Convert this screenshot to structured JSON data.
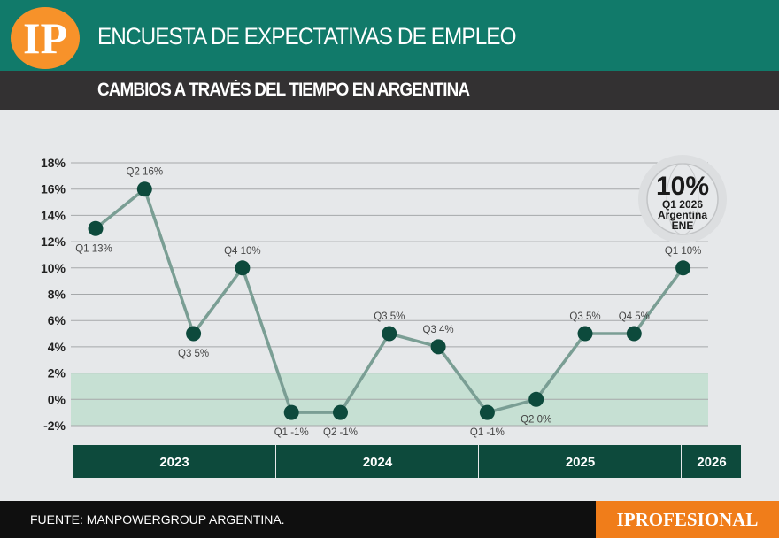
{
  "header": {
    "logo": "IP",
    "title": "ENCUESTA DE EXPECTATIVAS DE EMPLEO",
    "subtitle": "CAMBIOS A TRAVÉS DEL TIEMPO EN ARGENTINA"
  },
  "footer": {
    "source": "FUENTE: MANPOWERGROUP ARGENTINA.",
    "brand": "IPROFESIONAL"
  },
  "badge": {
    "value": "10%",
    "line1": "Q1 2026",
    "line2": "Argentina",
    "line3": "ENE"
  },
  "colors": {
    "header": "#117a6a",
    "line": "#7a9e94",
    "marker": "#0d4a3c",
    "band": "#c6e0d3",
    "years_bar": "#0d4a3c",
    "brand": "#f07d1a"
  },
  "chart_data": {
    "type": "line",
    "ylim": [
      -2,
      18
    ],
    "yticks": [
      "18%",
      "16%",
      "14%",
      "12%",
      "10%",
      "8%",
      "6%",
      "4%",
      "2%",
      "0%",
      "-2%"
    ],
    "grid": true,
    "shaded_band": [
      -2,
      2
    ],
    "values": [
      13,
      16,
      5,
      10,
      -1,
      -1,
      5,
      4,
      -1,
      0,
      5,
      5,
      10
    ],
    "labels": [
      "Q1 13%",
      "Q2 16%",
      "Q3 5%",
      "Q4 10%",
      "Q1 -1%",
      "Q2 -1%",
      "Q3 5%",
      "Q3 4%",
      "Q1 -1%",
      "Q2 0%",
      "Q3 5%",
      "Q4 5%",
      "Q1 10%"
    ],
    "years": [
      {
        "label": "2023",
        "quarters": 4
      },
      {
        "label": "2024",
        "quarters": 4
      },
      {
        "label": "2025",
        "quarters": 4
      },
      {
        "label": "2026",
        "quarters": 1
      }
    ]
  }
}
